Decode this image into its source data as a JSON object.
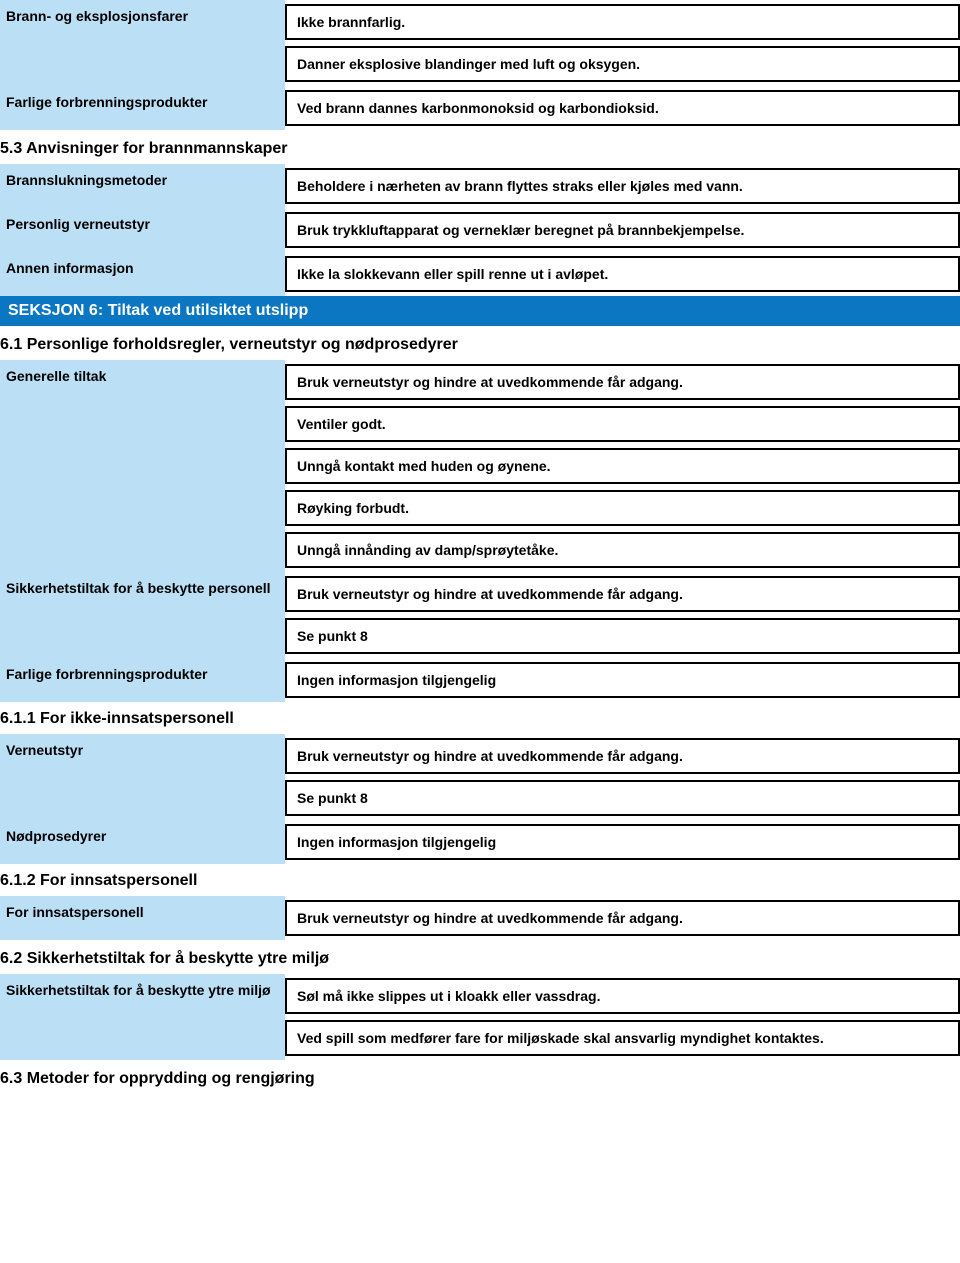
{
  "colors": {
    "label_bg": "#bbdff5",
    "banner_bg": "#0b77c2",
    "border": "#000000",
    "text": "#000000"
  },
  "rows": {
    "fire_explosion": {
      "label": "Brann- og eksplosjonsfarer",
      "v1": "Ikke brannfarlig.",
      "v2": "Danner eksplosive blandinger med luft og oksygen."
    },
    "combustion": {
      "label": "Farlige forbrenningsprodukter",
      "v1": "Ved brann dannes karbonmonoksid og karbondioksid."
    },
    "s53_title": "5.3 Anvisninger for brannmannskaper",
    "extinguish": {
      "label": "Brannslukningsmetoder",
      "v1": "Beholdere i nærheten av brann flyttes straks eller kjøles med vann."
    },
    "ppe": {
      "label": "Personlig verneutstyr",
      "v1": "Bruk trykkluftapparat og verneklær beregnet på brannbekjempelse."
    },
    "other": {
      "label": "Annen informasjon",
      "v1": "Ikke la slokkevann eller spill renne ut i avløpet."
    },
    "section6_banner": "SEKSJON 6: Tiltak ved utilsiktet utslipp",
    "s61_title": "6.1 Personlige forholdsregler, verneutstyr og nødprosedyrer",
    "general": {
      "label": "Generelle tiltak",
      "v1": "Bruk verneutstyr og hindre at uvedkommende får adgang.",
      "v2": "Ventiler godt.",
      "v3": "Unngå kontakt med huden og øynene.",
      "v4": "Røyking forbudt.",
      "v5": "Unngå innånding av damp/sprøytetåke."
    },
    "protect_personnel": {
      "label": "Sikkerhetstiltak for å beskytte personell",
      "v1": "Bruk verneutstyr og hindre at uvedkommende får adgang.",
      "v2": "Se punkt 8"
    },
    "combustion2": {
      "label": "Farlige forbrenningsprodukter",
      "v1": "Ingen informasjon tilgjengelig"
    },
    "s611_title": "6.1.1 For ikke-innsatspersonell",
    "vernutstyr": {
      "label": "Verneutstyr",
      "v1": "Bruk verneutstyr og hindre at uvedkommende får adgang.",
      "v2": "Se punkt 8"
    },
    "emergency": {
      "label": "Nødprosedyrer",
      "v1": "Ingen informasjon tilgjengelig"
    },
    "s612_title": "6.1.2 For innsatspersonell",
    "for_innsats": {
      "label": "For innsatspersonell",
      "v1": "Bruk verneutstyr og hindre at uvedkommende får adgang."
    },
    "s62_title": "6.2 Sikkerhetstiltak for å beskytte ytre miljø",
    "protect_env": {
      "label": "Sikkerhetstiltak for å beskytte ytre miljø",
      "v1": "Søl må ikke slippes ut i kloakk eller vassdrag.",
      "v2": "Ved spill som medfører fare for miljøskade skal ansvarlig myndighet kontaktes."
    },
    "s63_title": "6.3 Metoder for opprydding og rengjøring"
  }
}
